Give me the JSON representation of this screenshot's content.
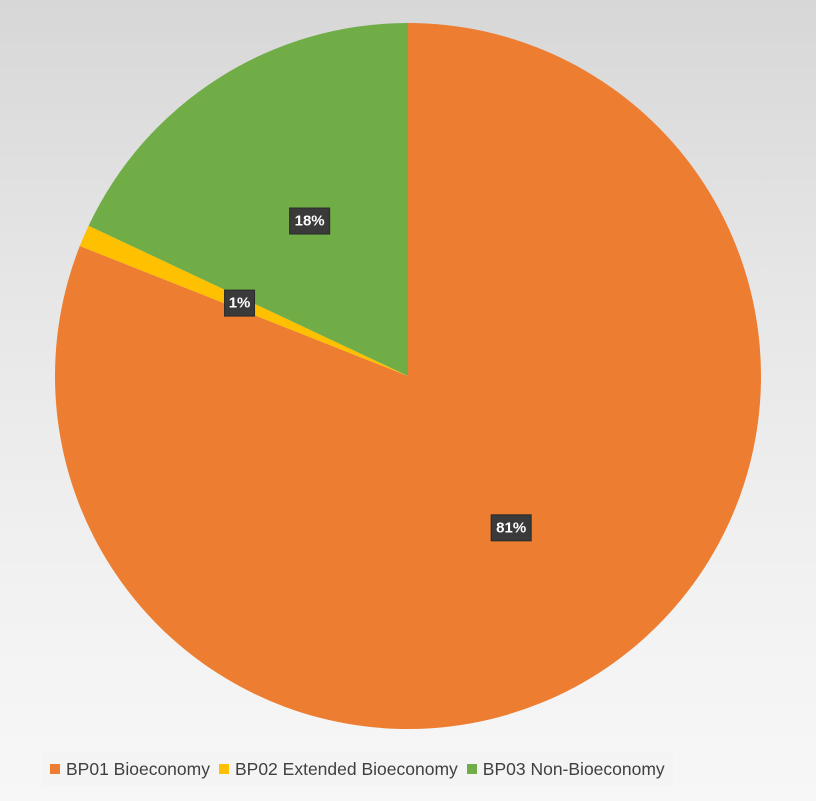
{
  "chart_data": {
    "type": "pie",
    "title": "",
    "start_angle_deg": 0,
    "direction": "clockwise",
    "slices": [
      {
        "name": "BP01 Bioeconomy",
        "value": 81,
        "label": "81%",
        "color": "#ED7D31"
      },
      {
        "name": "BP02 Extended Bioeconomy",
        "value": 1,
        "label": "1%",
        "color": "#FFC000"
      },
      {
        "name": "BP03 Non-Bioeconomy",
        "value": 18,
        "label": "18%",
        "color": "#70AD47"
      }
    ],
    "legend_position": "bottom",
    "background": "gradient-gray"
  }
}
